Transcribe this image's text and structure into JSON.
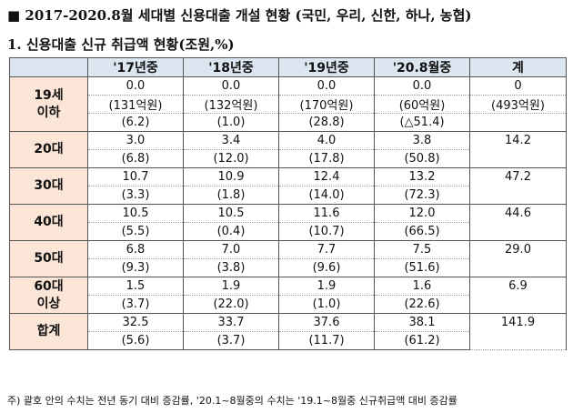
{
  "title": "■ 2017-2020.8월 세대별 신용대출 개설 현황 (국민, 우리, 신한, 하나, 농협)",
  "subtitle": "1. 신용대출 신규 취급액 현황(조원,%)",
  "table": {
    "corner": "",
    "headers": [
      "'17년중",
      "'18년중",
      "'19년중",
      "'20.8월중",
      "계"
    ],
    "groups": [
      {
        "label": "19세\n이하",
        "total": "0",
        "rows": [
          [
            "0.0",
            "0.0",
            "0.0",
            "0.0",
            "0"
          ],
          [
            "(131억원)",
            "(132억원)",
            "(170억원)",
            "(60억원)",
            "(493억원)"
          ],
          [
            "(6.2)",
            "(1.0)",
            "(28.8)",
            "(△51.4)",
            ""
          ]
        ]
      },
      {
        "label": "20대",
        "total": "14.2",
        "rows": [
          [
            "3.0",
            "3.4",
            "4.0",
            "3.8"
          ],
          [
            "(6.8)",
            "(12.0)",
            "(17.8)",
            "(50.8)"
          ]
        ]
      },
      {
        "label": "30대",
        "total": "47.2",
        "rows": [
          [
            "10.7",
            "10.9",
            "12.4",
            "13.2"
          ],
          [
            "(3.3)",
            "(1.8)",
            "(14.0)",
            "(72.3)"
          ]
        ]
      },
      {
        "label": "40대",
        "total": "44.6",
        "rows": [
          [
            "10.5",
            "10.5",
            "11.6",
            "12.0"
          ],
          [
            "(5.5)",
            "(0.4)",
            "(10.7)",
            "(66.5)"
          ]
        ]
      },
      {
        "label": "50대",
        "total": "29.0",
        "rows": [
          [
            "6.8",
            "7.0",
            "7.7",
            "7.5"
          ],
          [
            "(9.3)",
            "(3.8)",
            "(9.6)",
            "(51.6)"
          ]
        ]
      },
      {
        "label": "60대\n이상",
        "total": "6.9",
        "rows": [
          [
            "1.5",
            "1.9",
            "1.9",
            "1.6"
          ],
          [
            "(3.7)",
            "(22.0)",
            "(1.0)",
            "(22.6)"
          ]
        ]
      },
      {
        "label": "합계",
        "total": "141.9",
        "rows": [
          [
            "32.5",
            "33.7",
            "37.6",
            "38.1"
          ],
          [
            "(5.6)",
            "(3.7)",
            "(11.7)",
            "(61.2)"
          ]
        ]
      }
    ]
  },
  "note": "주) 괄호 안의 수치는 전년 동기 대비 증감률, '20.1~8월중의 수치는 '19.1~8월중 신규취급액 대비 증감률"
}
